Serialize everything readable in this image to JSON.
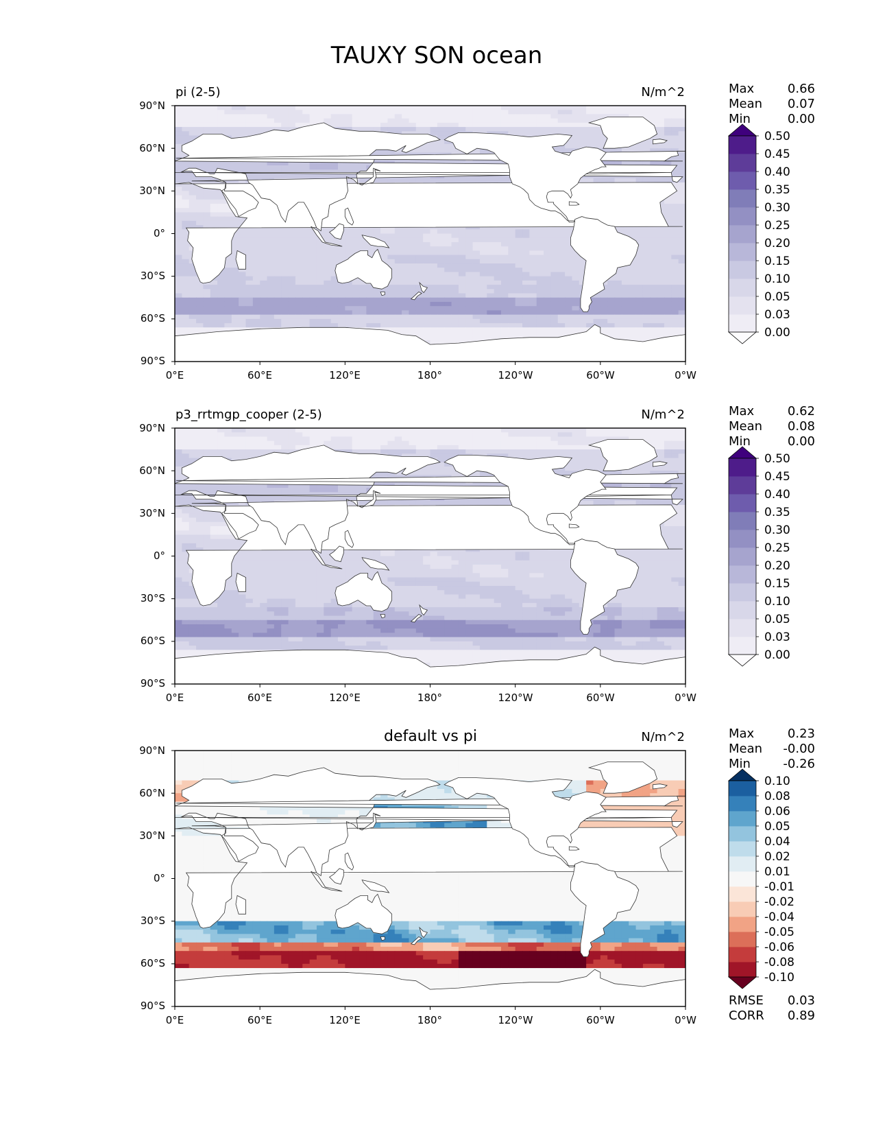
{
  "figure": {
    "title": "TAUXY SON ocean"
  },
  "axes": {
    "lat_ticks": [
      "90°N",
      "60°N",
      "30°N",
      "0°",
      "30°S",
      "60°S",
      "90°S"
    ],
    "lon_ticks": [
      "0°E",
      "60°E",
      "120°E",
      "180°",
      "120°W",
      "60°W",
      "0°W"
    ]
  },
  "stat_labels": {
    "max": "Max",
    "mean": "Mean",
    "min": "Min",
    "rmse": "RMSE",
    "corr": "CORR"
  },
  "colors": {
    "purples": [
      "#fcfbfd",
      "#efedf5",
      "#e4e2ef",
      "#d8d7e9",
      "#c9c9e2",
      "#b8b7d9",
      "#a6a4ce",
      "#9390c3",
      "#807db8",
      "#6e5cad",
      "#5e3c99",
      "#4e1c8a",
      "#3f007d"
    ],
    "diverging": [
      "#67001f",
      "#a01528",
      "#c43c3c",
      "#dc6f59",
      "#f1a385",
      "#f8ccb5",
      "#fbe5d8",
      "#f7f7f7",
      "#e1edf3",
      "#bfdceb",
      "#93c4de",
      "#5fa5cd",
      "#3581ba",
      "#1b5fa0",
      "#053061"
    ],
    "land": "#ffffff",
    "coastline": "#333333"
  },
  "panels": [
    {
      "left_title": "pi (2-5)",
      "center_title": "",
      "units": "N/m^2",
      "stats": {
        "max": "0.66",
        "mean": "0.07",
        "min": "0.00"
      },
      "colorbar": {
        "cmap": "purples",
        "extend": "both",
        "tick_labels": [
          "0.00",
          "0.03",
          "0.05",
          "0.10",
          "0.15",
          "0.20",
          "0.25",
          "0.30",
          "0.35",
          "0.40",
          "0.45",
          "0.50"
        ]
      }
    },
    {
      "left_title": "p3_rrtmgp_cooper (2-5)",
      "center_title": "",
      "units": "N/m^2",
      "stats": {
        "max": "0.62",
        "mean": "0.08",
        "min": "0.00"
      },
      "colorbar": {
        "cmap": "purples",
        "extend": "both",
        "tick_labels": [
          "0.00",
          "0.03",
          "0.05",
          "0.10",
          "0.15",
          "0.20",
          "0.25",
          "0.30",
          "0.35",
          "0.40",
          "0.45",
          "0.50"
        ]
      }
    },
    {
      "left_title": "",
      "center_title": "default vs pi",
      "units": "N/m^2",
      "stats": {
        "max": "0.23",
        "mean": "-0.00",
        "min": "-0.26",
        "rmse": "0.03",
        "corr": "0.89"
      },
      "colorbar": {
        "cmap": "diverging",
        "extend": "both",
        "tick_labels": [
          "-0.10",
          "-0.08",
          "-0.06",
          "-0.05",
          "-0.04",
          "-0.02",
          "-0.01",
          "0.01",
          "0.02",
          "0.04",
          "0.05",
          "0.06",
          "0.08",
          "0.10"
        ]
      }
    }
  ],
  "chart_data": [
    {
      "type": "heatmap",
      "title": "pi (2-5)",
      "variable": "TAUXY",
      "season": "SON",
      "units": "N/m^2",
      "projection": "PlateCarree, central longitude 180",
      "x_range": [
        0,
        360
      ],
      "y_range": [
        -90,
        90
      ],
      "levels": [
        0.0,
        0.03,
        0.05,
        0.1,
        0.15,
        0.2,
        0.25,
        0.3,
        0.35,
        0.4,
        0.45,
        0.5
      ],
      "stats": {
        "max": 0.66,
        "mean": 0.07,
        "min": 0.0
      },
      "zonal_band_estimates": [
        {
          "lat_range": [
            60,
            80
          ],
          "value": 0.08
        },
        {
          "lat_range": [
            35,
            60
          ],
          "value": 0.13
        },
        {
          "lat_range": [
            15,
            35
          ],
          "value": 0.06
        },
        {
          "lat_range": [
            -15,
            15
          ],
          "value": 0.07
        },
        {
          "lat_range": [
            -35,
            -15
          ],
          "value": 0.09
        },
        {
          "lat_range": [
            -45,
            -35
          ],
          "value": 0.12
        },
        {
          "lat_range": [
            -60,
            -45
          ],
          "value": 0.22
        },
        {
          "lat_range": [
            -65,
            -60
          ],
          "value": 0.08
        }
      ]
    },
    {
      "type": "heatmap",
      "title": "p3_rrtmgp_cooper (2-5)",
      "variable": "TAUXY",
      "season": "SON",
      "units": "N/m^2",
      "projection": "PlateCarree, central longitude 180",
      "x_range": [
        0,
        360
      ],
      "y_range": [
        -90,
        90
      ],
      "levels": [
        0.0,
        0.03,
        0.05,
        0.1,
        0.15,
        0.2,
        0.25,
        0.3,
        0.35,
        0.4,
        0.45,
        0.5
      ],
      "stats": {
        "max": 0.62,
        "mean": 0.08,
        "min": 0.0
      },
      "zonal_band_estimates": [
        {
          "lat_range": [
            60,
            80
          ],
          "value": 0.08
        },
        {
          "lat_range": [
            35,
            60
          ],
          "value": 0.12
        },
        {
          "lat_range": [
            15,
            35
          ],
          "value": 0.06
        },
        {
          "lat_range": [
            -15,
            15
          ],
          "value": 0.07
        },
        {
          "lat_range": [
            -35,
            -15
          ],
          "value": 0.1
        },
        {
          "lat_range": [
            -45,
            -35
          ],
          "value": 0.14
        },
        {
          "lat_range": [
            -60,
            -45
          ],
          "value": 0.27
        },
        {
          "lat_range": [
            -65,
            -60
          ],
          "value": 0.12
        }
      ]
    },
    {
      "type": "heatmap",
      "title": "default vs pi",
      "variable": "TAUXY difference",
      "season": "SON",
      "units": "N/m^2",
      "projection": "PlateCarree, central longitude 180",
      "x_range": [
        0,
        360
      ],
      "y_range": [
        -90,
        90
      ],
      "levels": [
        -0.1,
        -0.08,
        -0.06,
        -0.05,
        -0.04,
        -0.02,
        -0.01,
        0.01,
        0.02,
        0.04,
        0.05,
        0.06,
        0.08,
        0.1
      ],
      "stats": {
        "max": 0.23,
        "mean": -0.0,
        "min": -0.26,
        "rmse": 0.03,
        "corr": 0.89
      },
      "zonal_band_estimates": [
        {
          "lat_range": [
            55,
            70
          ],
          "value": 0.02
        },
        {
          "lat_range": [
            35,
            55
          ],
          "value": 0.03
        },
        {
          "lat_range": [
            -30,
            35
          ],
          "value": 0.0
        },
        {
          "lat_range": [
            -45,
            -35
          ],
          "value": 0.05
        },
        {
          "lat_range": [
            -50,
            -45
          ],
          "value": -0.05
        },
        {
          "lat_range": [
            -62,
            -50
          ],
          "value": -0.09
        }
      ]
    }
  ]
}
